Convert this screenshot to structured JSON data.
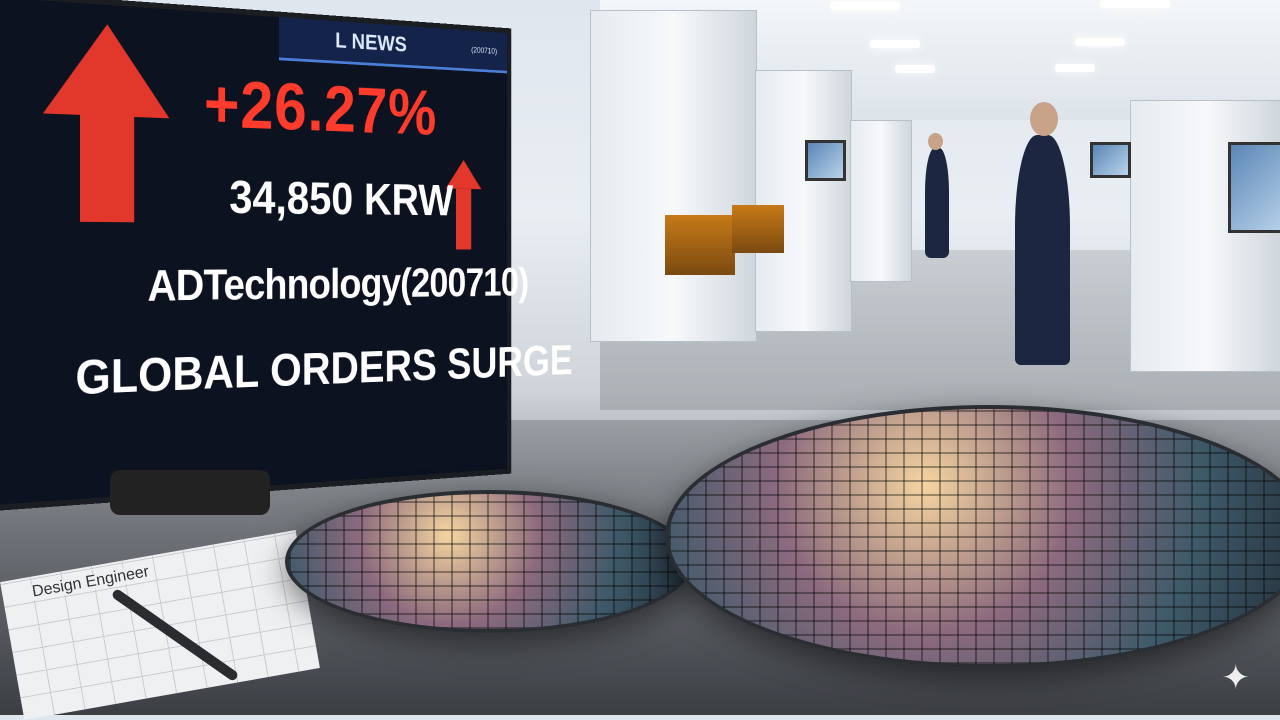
{
  "display": {
    "header_partial": "L NEWS",
    "header_mini_code": "(200710)",
    "change_percent": "+26.27%",
    "price": "34,850 KRW",
    "ticker": "ADTechnology(200710)",
    "headline": "GLOBAL ORDERS SURGE",
    "accent_color": "#e2372b"
  },
  "desk": {
    "paper_label": "Design Engineer"
  },
  "watermark": {
    "icon": "sparkle-icon"
  }
}
